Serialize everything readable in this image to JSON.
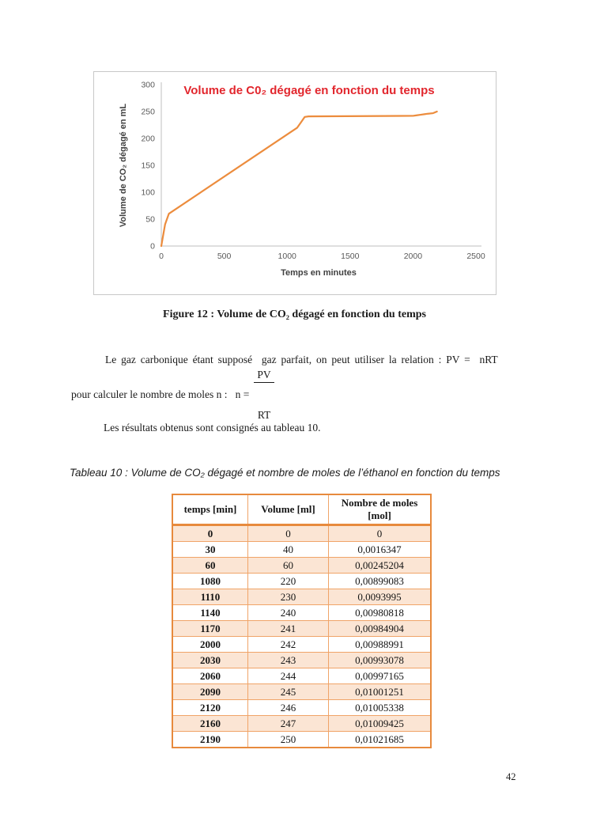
{
  "page": {
    "number": "42"
  },
  "figure": {
    "caption": "Figure 12 : Volume de CO₂ dégagé en fonction du temps"
  },
  "paragraph": {
    "line1": "Le gaz carbonique étant supposé  gaz parfait, on peut utiliser la relation : PV =  nRT",
    "line2_prefix": "pour calculer le nombre de moles n :   n =",
    "fraction_numerator": "PV",
    "fraction_denominator": "RT",
    "line3": "Les résultats obtenus sont consignés au tableau 10."
  },
  "table_caption": "Tableau 10 : Volume de CO₂ dégagé et nombre de moles de l’éthanol en fonction du temps",
  "table": {
    "headers": [
      "temps [min]",
      "Volume [ml]",
      "Nombre de moles [mol]"
    ],
    "rows": [
      [
        "0",
        "0",
        "0"
      ],
      [
        "30",
        "40",
        "0,0016347"
      ],
      [
        "60",
        "60",
        "0,00245204"
      ],
      [
        "1080",
        "220",
        "0,00899083"
      ],
      [
        "1110",
        "230",
        "0,0093995"
      ],
      [
        "1140",
        "240",
        "0,00980818"
      ],
      [
        "1170",
        "241",
        "0,00984904"
      ],
      [
        "2000",
        "242",
        "0,00988991"
      ],
      [
        "2030",
        "243",
        "0,00993078"
      ],
      [
        "2060",
        "244",
        "0,00997165"
      ],
      [
        "2090",
        "245",
        "0,01001251"
      ],
      [
        "2120",
        "246",
        "0,01005338"
      ],
      [
        "2160",
        "247",
        "0,01009425"
      ],
      [
        "2190",
        "250",
        "0,01021685"
      ]
    ]
  },
  "chart_data": {
    "type": "line",
    "title": "Volume de C0₂ dégagé en fonction du temps",
    "xlabel": "Temps en minutes",
    "ylabel": "Volume de CO₂ dégagé en mL",
    "x": [
      0,
      30,
      60,
      1080,
      1110,
      1140,
      1170,
      2000,
      2030,
      2060,
      2090,
      2120,
      2160,
      2190
    ],
    "series": [
      {
        "name": "Volume de CO2 dégagé",
        "values": [
          0,
          40,
          60,
          220,
          230,
          240,
          241,
          242,
          243,
          244,
          245,
          246,
          247,
          250
        ]
      }
    ],
    "xlim": [
      0,
      2500
    ],
    "ylim": [
      0,
      300
    ],
    "xticks": [
      0,
      500,
      1000,
      1500,
      2000,
      2500
    ],
    "yticks": [
      0,
      50,
      100,
      150,
      200,
      250,
      300
    ],
    "grid": false,
    "legend": false,
    "line_color": "#ec8c3d",
    "title_color": "#e2262d",
    "axis_color": "#bfbfbf"
  }
}
